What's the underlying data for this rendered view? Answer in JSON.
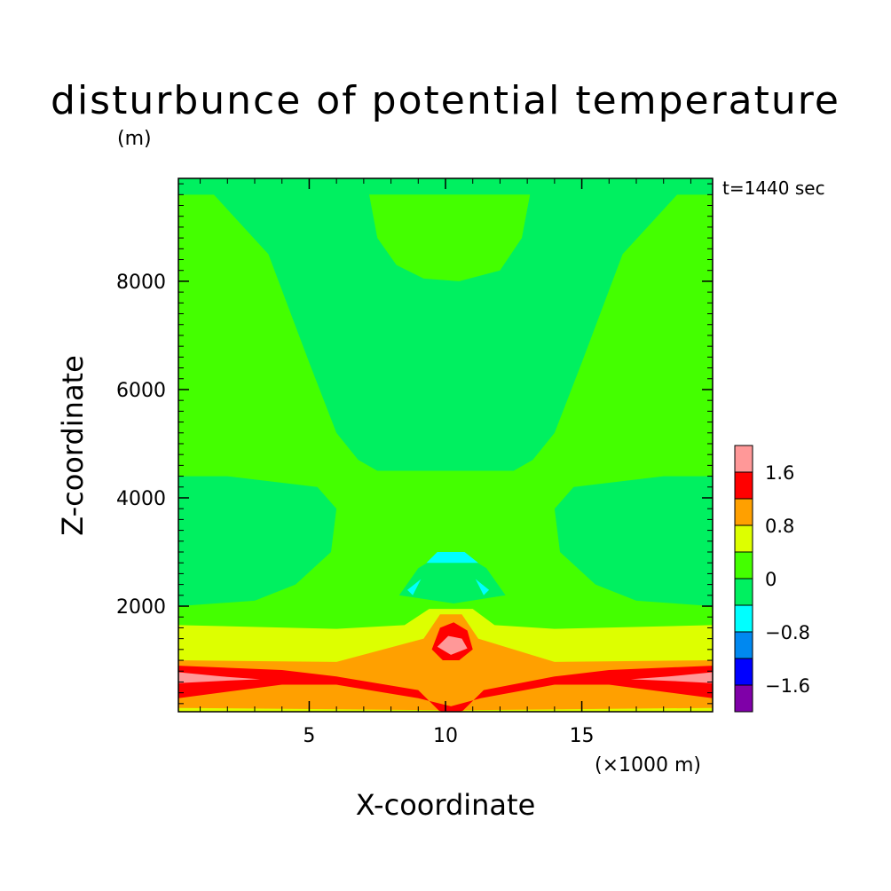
{
  "chart_data": {
    "type": "heatmap",
    "title": "disturbunce of potential temperature",
    "ylabel": "Z-coordinate",
    "yunit": "(m)",
    "xlabel": "X-coordinate",
    "xunit": "(×1000 m)",
    "annotation": "t=1440 sec",
    "xlim": [
      0.2,
      19.8
    ],
    "ylim": [
      50,
      9900
    ],
    "xticks": [
      5,
      10,
      15
    ],
    "xtick_labels": [
      "5",
      "10",
      "15"
    ],
    "yticks": [
      2000,
      4000,
      6000,
      8000
    ],
    "ytick_labels": [
      "2000",
      "4000",
      "6000",
      "8000"
    ],
    "colorbar": {
      "levels": [
        -2.0,
        -1.6,
        -1.2,
        -0.8,
        -0.4,
        0.0,
        0.4,
        0.8,
        1.2,
        1.6,
        2.0
      ],
      "colors": [
        "#7f00a8",
        "#0000ff",
        "#0088f0",
        "#00ffff",
        "#00f060",
        "#44ff00",
        "#ddff00",
        "#ffa000",
        "#ff0000",
        "#ff9898"
      ],
      "tick_values": [
        1.6,
        0.8,
        0,
        -0.8,
        -1.6
      ],
      "tick_labels": [
        "1.6",
        "0.8",
        "0",
        "−0.8",
        "−1.6"
      ]
    },
    "background_class": 0.2,
    "regions": [
      {
        "value": -0.2,
        "label": "upper left tongue",
        "pts": [
          [
            0.2,
            9600
          ],
          [
            1.5,
            9600
          ],
          [
            3.5,
            8500
          ],
          [
            5,
            6500
          ],
          [
            6,
            5200
          ],
          [
            6.8,
            4700
          ],
          [
            7.5,
            4500
          ],
          [
            12.5,
            4500
          ],
          [
            13.2,
            4700
          ],
          [
            14,
            5200
          ],
          [
            15,
            6500
          ],
          [
            16.5,
            8500
          ],
          [
            18.5,
            9600
          ],
          [
            19.8,
            9600
          ],
          [
            19.8,
            9900
          ],
          [
            0.2,
            9900
          ]
        ]
      },
      {
        "value": -0.2,
        "label": "upper right tongue",
        "pts": [
          [
            0.2,
            9900
          ],
          [
            19.8,
            9900
          ],
          [
            19.8,
            9600
          ],
          [
            0.2,
            9600
          ]
        ]
      },
      {
        "value": 0.2,
        "label": "upper left lobe",
        "pts": [
          [
            0.2,
            9550
          ],
          [
            1.2,
            9500
          ],
          [
            1.5,
            9300
          ],
          [
            0.2,
            9300
          ]
        ]
      },
      {
        "value": 0.2,
        "label": "upper right lobe",
        "pts": [
          [
            19.8,
            9550
          ],
          [
            18.8,
            9500
          ],
          [
            18.5,
            9300
          ],
          [
            19.8,
            9300
          ]
        ]
      },
      {
        "value": 0.2,
        "label": "top central cap",
        "pts": [
          [
            7.2,
            9600
          ],
          [
            13.1,
            9600
          ],
          [
            12.8,
            8800
          ],
          [
            12,
            8200
          ],
          [
            10.5,
            8000
          ],
          [
            9.2,
            8050
          ],
          [
            8.2,
            8300
          ],
          [
            7.5,
            8800
          ]
        ]
      },
      {
        "value": -0.2,
        "label": "mid left blob",
        "pts": [
          [
            0.2,
            4400
          ],
          [
            2,
            4400
          ],
          [
            5.3,
            4200
          ],
          [
            6,
            3800
          ],
          [
            5.8,
            3000
          ],
          [
            4.5,
            2400
          ],
          [
            3,
            2100
          ],
          [
            0.2,
            2000
          ]
        ]
      },
      {
        "value": -0.2,
        "label": "mid right blob",
        "pts": [
          [
            19.8,
            4400
          ],
          [
            18,
            4400
          ],
          [
            14.7,
            4200
          ],
          [
            14,
            3800
          ],
          [
            14.2,
            3000
          ],
          [
            15.5,
            2400
          ],
          [
            17,
            2100
          ],
          [
            19.8,
            2000
          ]
        ]
      },
      {
        "value": -0.2,
        "label": "central small blob",
        "pts": [
          [
            8.3,
            2200
          ],
          [
            9,
            2700
          ],
          [
            9.8,
            2950
          ],
          [
            10.7,
            2950
          ],
          [
            11.5,
            2700
          ],
          [
            12.2,
            2200
          ],
          [
            10.3,
            2050
          ]
        ]
      },
      {
        "value": -0.6,
        "label": "cyan cap",
        "pts": [
          [
            9.3,
            2800
          ],
          [
            9.7,
            3000
          ],
          [
            10.7,
            3000
          ],
          [
            11.2,
            2800
          ]
        ]
      },
      {
        "value": -0.6,
        "label": "cyan left",
        "pts": [
          [
            8.6,
            2300
          ],
          [
            9.1,
            2500
          ],
          [
            8.8,
            2200
          ]
        ]
      },
      {
        "value": -0.6,
        "label": "cyan right",
        "pts": [
          [
            11.6,
            2300
          ],
          [
            11.1,
            2500
          ],
          [
            11.4,
            2200
          ]
        ]
      },
      {
        "value": 0.6,
        "label": "yellow band",
        "pts": [
          [
            0.2,
            1650
          ],
          [
            6,
            1580
          ],
          [
            8.5,
            1650
          ],
          [
            9.4,
            1950
          ],
          [
            11,
            1950
          ],
          [
            11.8,
            1650
          ],
          [
            14,
            1580
          ],
          [
            19.8,
            1650
          ],
          [
            19.8,
            50
          ],
          [
            0.2,
            50
          ]
        ]
      },
      {
        "value": 1.0,
        "label": "orange band",
        "pts": [
          [
            0.2,
            1000
          ],
          [
            6,
            970
          ],
          [
            9.2,
            1400
          ],
          [
            9.8,
            1850
          ],
          [
            10.6,
            1850
          ],
          [
            11.2,
            1400
          ],
          [
            14,
            970
          ],
          [
            19.8,
            1000
          ],
          [
            19.8,
            50
          ],
          [
            0.2,
            50
          ]
        ]
      },
      {
        "value": 1.4,
        "label": "red band",
        "pts": [
          [
            0.2,
            900
          ],
          [
            4,
            820
          ],
          [
            6,
            700
          ],
          [
            9,
            450
          ],
          [
            9.8,
            50
          ],
          [
            10.6,
            50
          ],
          [
            11.4,
            450
          ],
          [
            14,
            700
          ],
          [
            16,
            820
          ],
          [
            19.8,
            900
          ],
          [
            19.8,
            300
          ],
          [
            16,
            550
          ],
          [
            14,
            550
          ],
          [
            11.3,
            300
          ],
          [
            10.2,
            150
          ],
          [
            9,
            300
          ],
          [
            6,
            550
          ],
          [
            4,
            550
          ],
          [
            0.2,
            300
          ]
        ]
      },
      {
        "value": 1.4,
        "label": "red core",
        "pts": [
          [
            9.5,
            1200
          ],
          [
            9.8,
            1600
          ],
          [
            10.3,
            1700
          ],
          [
            10.8,
            1550
          ],
          [
            11,
            1200
          ],
          [
            10.5,
            1000
          ],
          [
            9.9,
            1000
          ]
        ]
      },
      {
        "value": 1.8,
        "label": "pink core",
        "pts": [
          [
            9.7,
            1250
          ],
          [
            10.1,
            1450
          ],
          [
            10.6,
            1400
          ],
          [
            10.8,
            1220
          ],
          [
            10.2,
            1100
          ]
        ]
      },
      {
        "value": 1.8,
        "label": "pink left streak",
        "pts": [
          [
            0.2,
            780
          ],
          [
            1.8,
            700
          ],
          [
            3.2,
            650
          ],
          [
            1.8,
            620
          ],
          [
            0.2,
            580
          ]
        ]
      },
      {
        "value": 1.8,
        "label": "pink right streak",
        "pts": [
          [
            19.8,
            780
          ],
          [
            18.2,
            700
          ],
          [
            16.8,
            650
          ],
          [
            18.2,
            620
          ],
          [
            19.8,
            580
          ]
        ]
      },
      {
        "value": 0.6,
        "label": "yellow bottom rim",
        "pts": [
          [
            0.2,
            120
          ],
          [
            9.7,
            80
          ],
          [
            9.9,
            50
          ],
          [
            0.2,
            50
          ]
        ]
      },
      {
        "value": 0.6,
        "label": "yellow bottom rim right",
        "pts": [
          [
            19.8,
            120
          ],
          [
            10.7,
            80
          ],
          [
            10.5,
            50
          ],
          [
            19.8,
            50
          ]
        ]
      }
    ]
  }
}
